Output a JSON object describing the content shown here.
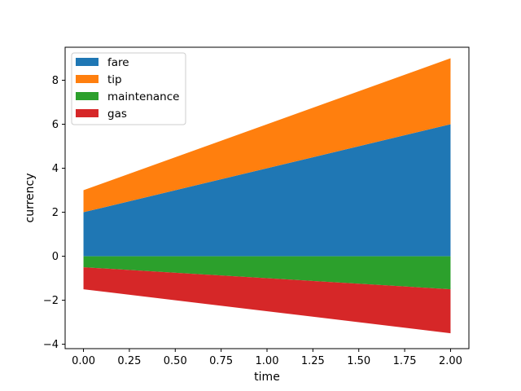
{
  "chart_data": {
    "type": "area",
    "stacked": true,
    "xlabel": "time",
    "ylabel": "currency",
    "xlim": [
      -0.1,
      2.1
    ],
    "ylim": [
      -4.2,
      9.5
    ],
    "x": [
      0,
      2
    ],
    "xticks": [
      0.0,
      0.25,
      0.5,
      0.75,
      1.0,
      1.25,
      1.5,
      1.75,
      2.0
    ],
    "xtick_labels": [
      "0.00",
      "0.25",
      "0.50",
      "0.75",
      "1.00",
      "1.25",
      "1.50",
      "1.75",
      "2.00"
    ],
    "yticks": [
      -4,
      -2,
      0,
      2,
      4,
      6,
      8
    ],
    "ytick_labels": [
      "−4",
      "−2",
      "0",
      "2",
      "4",
      "6",
      "8"
    ],
    "grid": false,
    "legend_position": "top-left",
    "series": [
      {
        "name": "fare",
        "values": [
          2,
          6
        ],
        "color": "#1f77b4",
        "stack": "positive"
      },
      {
        "name": "tip",
        "values": [
          1,
          3
        ],
        "color": "#ff7f0e",
        "stack": "positive"
      },
      {
        "name": "maintenance",
        "values": [
          -0.5,
          -1.5
        ],
        "color": "#2ca02c",
        "stack": "negative"
      },
      {
        "name": "gas",
        "values": [
          -1,
          -2
        ],
        "color": "#d62728",
        "stack": "negative"
      }
    ]
  }
}
